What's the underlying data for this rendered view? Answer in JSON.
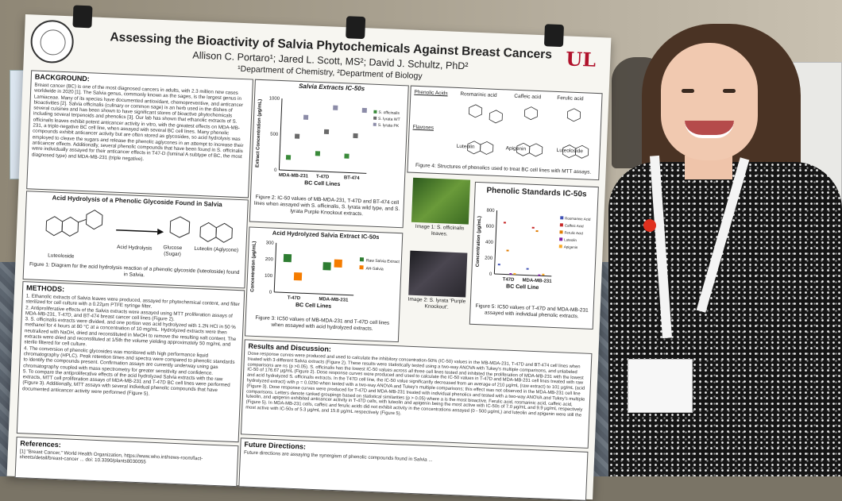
{
  "poster": {
    "title": "Assessing the Bioactivity of Salvia Phytochemicals Against Breast Cancers",
    "authors": "Allison C. Portaro¹; Jared L. Scott, MS²; David J. Schultz, PhD²",
    "departments": "¹Department of Chemistry, ²Department of Biology",
    "logo": "UL",
    "background": {
      "heading": "BACKGROUND:",
      "text": "Breast cancer (BC) is one of the most diagnosed cancers in adults, with 2.3 million new cases worldwide in 2020 [1]. The Salvia genus, commonly known as the sages, is the largest genus in Lamiaceae. Many of its species have documented antioxidant, chemopreventive, and anticancer bioactivities [2]. Salvia officinalis (culinary or common sage) is an herb used in the dishes of several cuisines and has been shown to have significant stores of bioactive phytochemicals including several terpenoids and phenolics [3]. Our lab has shown that ethanolic extracts of S. officinalis leaves exhibit potent anticancer activity in vitro, with the greatest effects on MDA-MB-231, a triple-negative BC cell line, when assayed with several BC cell lines. Many phenolic compounds exhibit anticancer activity but are often stored as glycosides, so acid hydrolysis was employed to cleave the sugars and release the phenolic aglycones in an attempt to increase their anticancer effects. Additionally, several phenolic compounds that have been found in S. officinalis were individually assayed for their anticancer effects in T47-D (luminal A subtype of BC, the most diagnosed type) and MDA-MB-231 (triple negative)."
    },
    "hydrolysis": {
      "heading": "Acid Hydrolysis of a Phenolic Glycoside Found in Salvia",
      "reactant": "Luteoloside",
      "arrow": "Acid Hydrolysis",
      "product1": "Glucose (Sugar)",
      "product2": "Luteolin (Aglycone)",
      "caption": "Figure 1: Diagram for the acid hydrolysis reaction of a phenolic glycoside (luteoloside) found in Salvia."
    },
    "methods": {
      "heading": "METHODS:",
      "items": [
        "1. Ethanolic extracts of Salvia leaves were produced, assayed for phytochemical content, and filter sterilized for cell culture with a 0.22µm PTFE syringe filter.",
        "2. Antiproliferative effects of the Salvia extracts were assayed using MTT proliferation assays of MDA-MB-231, T-47D, and BT-474 breast cancer cell lines (Figure 2).",
        "3. S. officinalis extracts were divided, and one portion was acid hydrolyzed with 1.2N HCl in 50 % methanol for 4 hours at 80 °C at a concentration of 10 mg/mL. Hydrolyzed extracts were then neutralized with NaOH, dried and reconstituted in MeOH to remove the resulting salt content. The extracts were dried and reconstituted at 1/5th the volume yielding approximately 50 mg/mL and sterile filtered for cell culture.",
        "4. The conversion of phenolic glycosides was monitored with high performance liquid chromatography (HPLC). Peak retention times and spectra were compared to phenolic standards to identify the compounds present. Confirmation assays are currently underway using gas chromatography coupled with mass spectrometry for greater sensitivity and confidence.",
        "5. To compare the antiproliferative effects of the acid hydrolyzed Salvia extracts with the raw extracts, MTT cell proliferation assays of MDA-MB-231 and T-47D BC cell lines were performed (Figure 3). Additionally, MTT assays with several individual phenolic compounds that have documented anticancer activity were performed (Figure 5)."
      ]
    },
    "references": {
      "heading": "References:",
      "text": "[1] \"Breast Cancer,\" World Health Organization, https://www.who.int/news-room/fact-sheets/detail/breast-cancer ... doi: 10.3390/plants8030055"
    },
    "chart1": {
      "heading": "Salvia Extracts IC-50s",
      "caption": "Figure 2: IC-50 values of MB-MDA-231, T-47D and BT-474 cell lines when assayed with S. officinalis, S. lyrata wild type, and S. lyrata Purple Knockout extracts."
    },
    "chart2": {
      "heading": "Acid Hydrolyzed Salvia Extract IC-50s",
      "caption": "Figure 3: IC50 values of MB-MDA-231 and T-47D cell lines when assayed with acid hydrolyzed extracts."
    },
    "phenolics": {
      "header_left": "Phenolic Acids",
      "acids": [
        "Rosmarinic acid",
        "Caffeic acid",
        "Ferulic acid"
      ],
      "header_flavones": "Flavones",
      "flavones": [
        "Luteolin",
        "Apigenin",
        "Luteoloside"
      ],
      "caption": "Figure 4: Structures of phenolics used to treat BC cell lines with MTT assays."
    },
    "image1_caption": "Image 1: S. officinalis leaves.",
    "image2_caption": "Image 2: S. lyrata 'Purple Knockout'.",
    "chart3": {
      "heading": "Phenolic Standards IC-50s",
      "caption": "Figure 5: IC50 values of T-47D and MDA-MB-231 assayed with individual phenolic extracts."
    },
    "results": {
      "heading": "Results and Discussion:",
      "text": "Dose response curves were produced and used to calculate the inhibitory concentration-50% (IC-50) values in the MB-MDA-231, T-47D and BT-474 cell lines when treated with 3 different Salvia extracts (Figure 2). These results were statistically tested using a two-way ANOVA with Tukey's multiple comparisons, and unlabeled comparisons are ns (p >0.05). S. officinalis has the lowest IC-50 values across all three cell lines tested and inhibited the proliferation of MDA-MB-231 with the lowest IC-50 of 176.67 µg/mL (Figure 2). Dose response curves were produced and used to calculate the IC-50 values in T-47D and MDA-MB-231 cell lines treated with raw and acid hydrolyzed S. officinalis extracts. In the T47D cell line, the IC-50 value significantly decreased from an average of 210 µg/mL (raw extract) to 101 µg/mL (acid hydrolyzed extract) with p = 0.0250 when tested with a two-way ANOVA and Tukey's multiple comparisons; this effect was not observed in the MDA-MB-231 cell line (Figure 3). Dose response curves were produced for T-47D and MDA-MB-231 treated with individual phenolics and tested with a two-way ANOVA and Tukey's multiple comparisons. Letters denote ranked groupings based on statistical similarities (p > 0.05) where a is the most bioactive. Ferulic acid, rosmarinic acid, caffeic acid, luteolin, and apigenin exhibited anticancer activity in T-47D cells, with luteolin and apigenin being the most active with IC-50s of 7.0 µg/mL and 9.9 µg/mL respectively (Figure 5). In MDA-MB-231 cells, caffeic and ferulic acids did not exhibit activity in the concentrations assayed (0 - 500 µg/mL) and luteolin and apigenin were still the most active with IC-50s of 5.3 µg/mL and 15.8 µg/mL respectively (Figure 5)."
    },
    "future": {
      "heading": "Future Directions:",
      "text": "Future directions are assaying the synergism of phenolic compounds found in Salvia ..."
    }
  },
  "chart_data": [
    {
      "type": "scatter",
      "title": "Salvia Extracts IC-50s",
      "xlabel": "BC Cell Lines",
      "ylabel": "Extract Concentration (µg/mL)",
      "categories": [
        "MDA-MB-231",
        "T-47D",
        "BT-474"
      ],
      "ylim": [
        0,
        1000
      ],
      "yticks": [
        0,
        500,
        1000
      ],
      "legend": [
        "S. officinalis",
        "S. lyrata WT",
        "S. lyrata PK"
      ],
      "series": [
        {
          "name": "S. officinalis",
          "values": [
            180,
            250,
            230
          ],
          "color": "#3a8a3a"
        },
        {
          "name": "S. lyrata WT",
          "values": [
            480,
            560,
            520
          ],
          "color": "#6a6a6a"
        },
        {
          "name": "S. lyrata PK",
          "values": [
            750,
            900,
            880
          ],
          "color": "#8c8ca8"
        }
      ]
    },
    {
      "type": "bar",
      "title": "Acid Hydrolyzed Salvia Extract IC-50s",
      "xlabel": "BC Cell Lines",
      "ylabel": "Concentration (µg/mL)",
      "categories": [
        "T-47D",
        "MDA-MB-231"
      ],
      "ylim": [
        0,
        300
      ],
      "yticks": [
        0,
        100,
        200,
        300
      ],
      "series": [
        {
          "name": "Raw Salvia Extract",
          "values": [
            210,
            170
          ],
          "color": "#2e7d32"
        },
        {
          "name": "AH-Salvia",
          "values": [
            101,
            190
          ],
          "color": "#f57c00"
        }
      ]
    },
    {
      "type": "scatter",
      "title": "Phenolic Standards IC-50s",
      "xlabel": "BC Cell Line",
      "ylabel": "Concentration (µg/mL)",
      "categories": [
        "T47D",
        "MDA-MB-231"
      ],
      "ylim": [
        0,
        800
      ],
      "yticks": [
        0,
        200,
        400,
        600,
        800
      ],
      "series": [
        {
          "name": "Rosmarinic Acid",
          "values": [
            120,
            80
          ],
          "color": "#3f51b5"
        },
        {
          "name": "Caffeic Acid",
          "values": [
            650,
            600
          ],
          "color": "#c62828"
        },
        {
          "name": "Ferulic Acid",
          "values": [
            300,
            560
          ],
          "color": "#e07b00"
        },
        {
          "name": "Luteolin",
          "values": [
            7.0,
            5.3
          ],
          "color": "#7b1fa2"
        },
        {
          "name": "Apigenin",
          "values": [
            9.9,
            15.8
          ],
          "color": "#f9a825"
        }
      ]
    }
  ]
}
